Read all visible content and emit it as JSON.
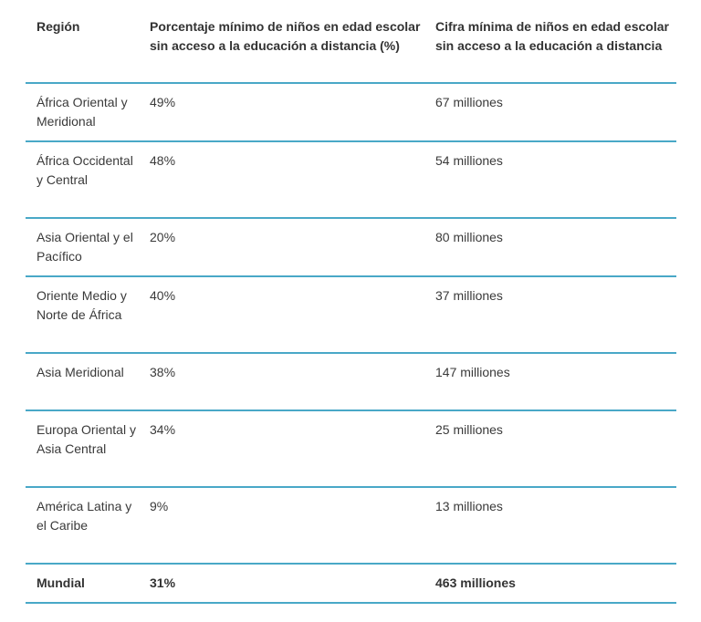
{
  "table": {
    "headers": [
      "Región",
      "Porcentaje mínimo de niños en edad escolar sin acceso a la educación a distancia (%)",
      "Cifra mínima de niños en edad escolar sin acceso a la educación a distancia"
    ],
    "rows": [
      [
        "África Oriental y Meridional",
        "49%",
        "67 milliones"
      ],
      [
        "África Occidental y Central",
        "48%",
        "54 milliones"
      ],
      [
        "Asia Oriental y el Pacífico",
        "20%",
        "80 milliones"
      ],
      [
        "Oriente Medio y Norte de África",
        "40%",
        "37 milliones"
      ],
      [
        "Asia Meridional",
        "38%",
        "147 milliones"
      ],
      [
        "Europa Oriental y Asia Central",
        "34%",
        "25 milliones"
      ],
      [
        "América Latina y el Caribe",
        "9%",
        "13 milliones"
      ]
    ],
    "total": [
      "Mundial",
      "31%",
      "463 milliones"
    ],
    "rule_color": "#49a8c7"
  }
}
